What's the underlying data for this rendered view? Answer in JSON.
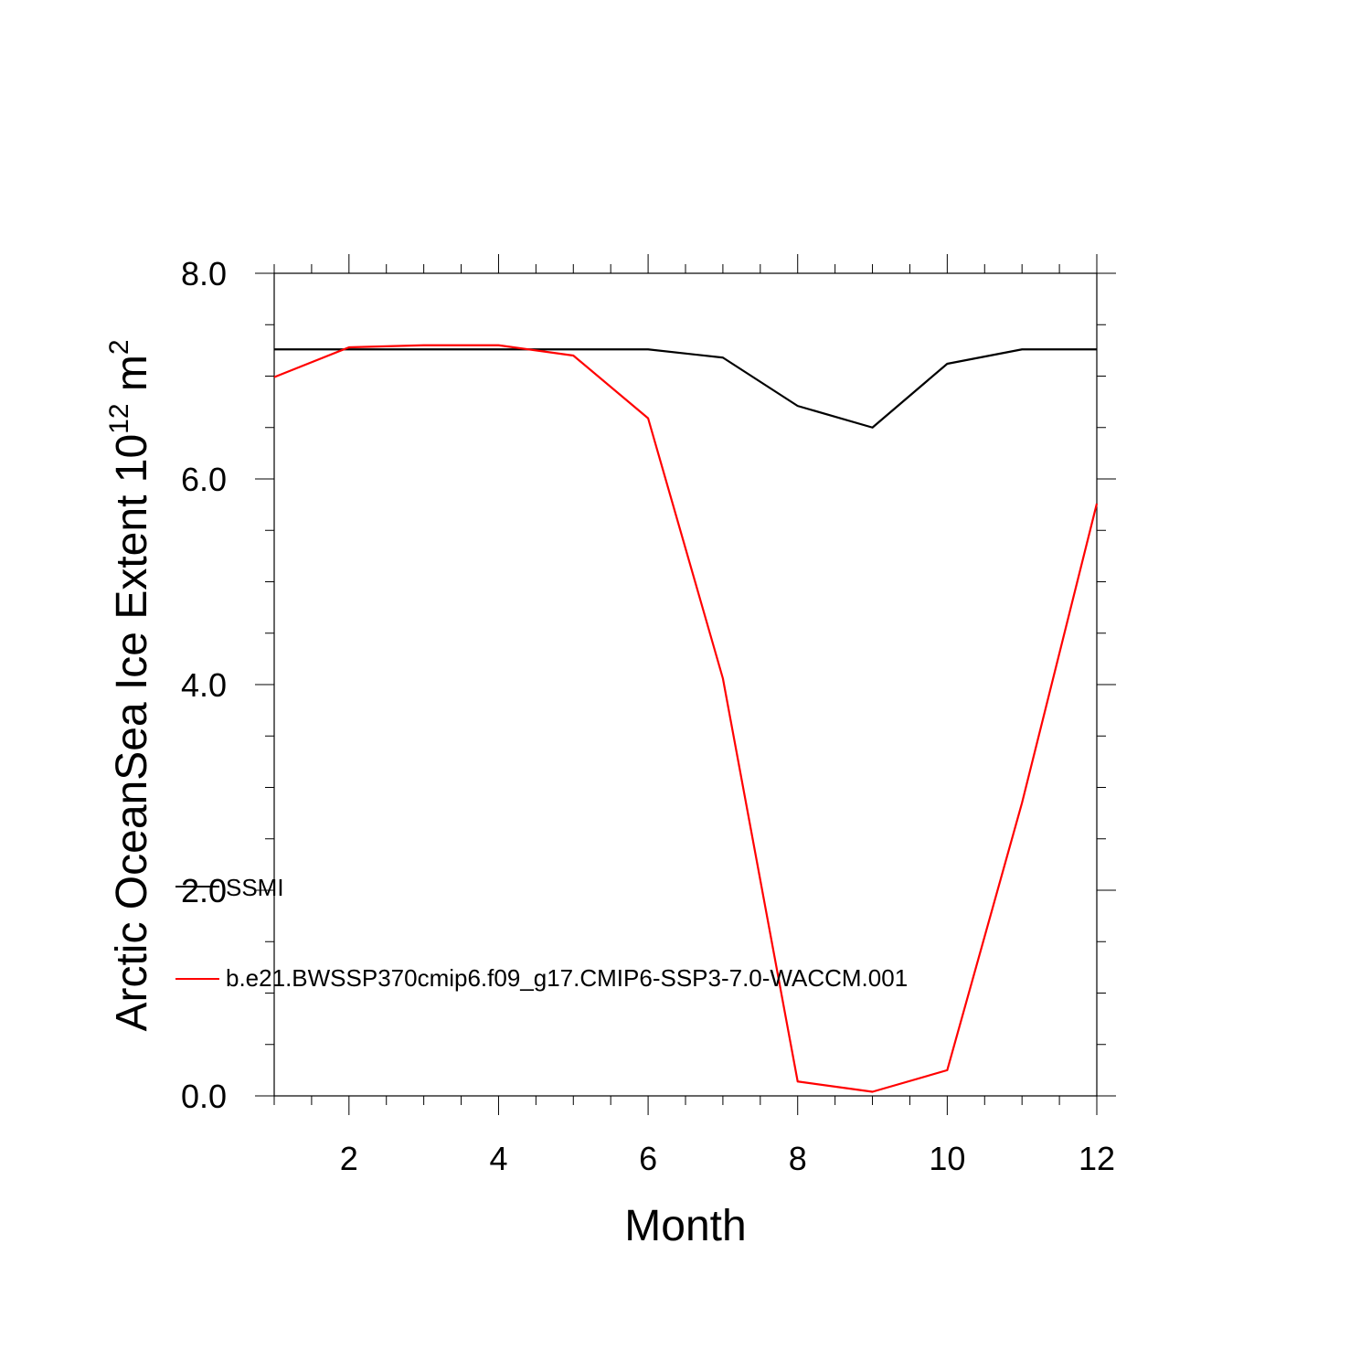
{
  "chart_data": {
    "type": "line",
    "title": "",
    "xlabel": "Month",
    "ylabel_main": "Arctic OceanSea Ice Extent 10",
    "ylabel_sup": "12",
    "ylabel_unit": "m",
    "ylabel_unit_sup": "2",
    "xlim": [
      1,
      12
    ],
    "ylim": [
      0,
      8
    ],
    "x_ticks": [
      2,
      4,
      6,
      8,
      10,
      12
    ],
    "x_tick_labels": [
      "2",
      "4",
      "6",
      "8",
      "10",
      "12"
    ],
    "y_ticks": [
      0,
      2,
      4,
      6,
      8
    ],
    "y_tick_labels": [
      "0.0",
      "2.0",
      "4.0",
      "6.0",
      "8.0"
    ],
    "grid": false,
    "legend_position": "lower-left",
    "x": [
      1,
      2,
      3,
      4,
      5,
      6,
      7,
      8,
      9,
      10,
      11,
      12
    ],
    "series": [
      {
        "name": "SSMI",
        "color": "#000000",
        "values": [
          7.26,
          7.26,
          7.26,
          7.26,
          7.26,
          7.26,
          7.18,
          6.71,
          6.5,
          7.12,
          7.26,
          7.26
        ]
      },
      {
        "name": "b.e21.BWSSP370cmip6.f09_g17.CMIP6-SSP3-7.0-WACCM.001",
        "color": "#ff0000",
        "values": [
          6.99,
          7.28,
          7.3,
          7.3,
          7.2,
          6.59,
          4.06,
          0.14,
          0.04,
          0.25,
          2.85,
          5.76
        ]
      }
    ]
  }
}
